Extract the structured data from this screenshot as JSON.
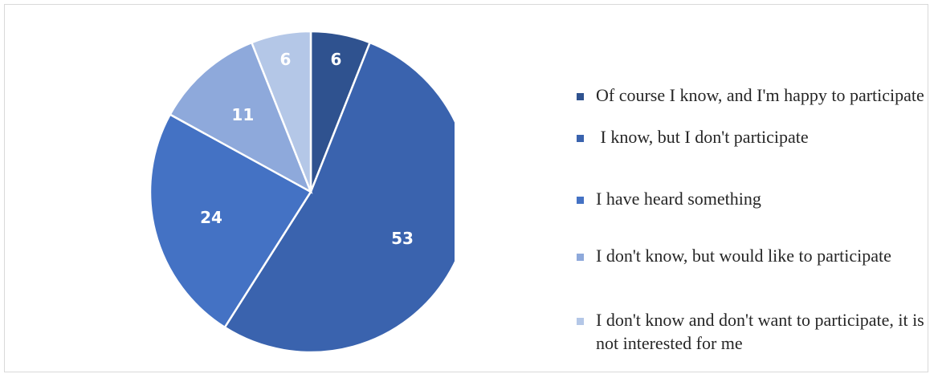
{
  "chart_data": {
    "type": "pie",
    "title": "",
    "categories": [
      "Of course I know, and I'm happy to participate",
      " I know, but I don't participate",
      "I have heard something",
      "I don't know, but would like to participate",
      "I don't know and don't want to participate, it is not interested for me"
    ],
    "values": [
      6,
      53,
      24,
      11,
      6
    ],
    "value_labels": [
      "6",
      "53",
      "24",
      "11",
      "6"
    ],
    "colors": [
      "#2f528f",
      "#3a63ae",
      "#4472c4",
      "#8ea9db",
      "#b4c7e7"
    ],
    "start_angle_deg": 0,
    "direction": "clockwise",
    "legend_position": "right",
    "legend_labels": [
      "Of course I know, and I'm happy to participate",
      " I know, but I don't participate",
      "I have heard something",
      "I don't know, but would like to participate",
      "I don't know and don't want to participate, it is not interested for me"
    ]
  }
}
